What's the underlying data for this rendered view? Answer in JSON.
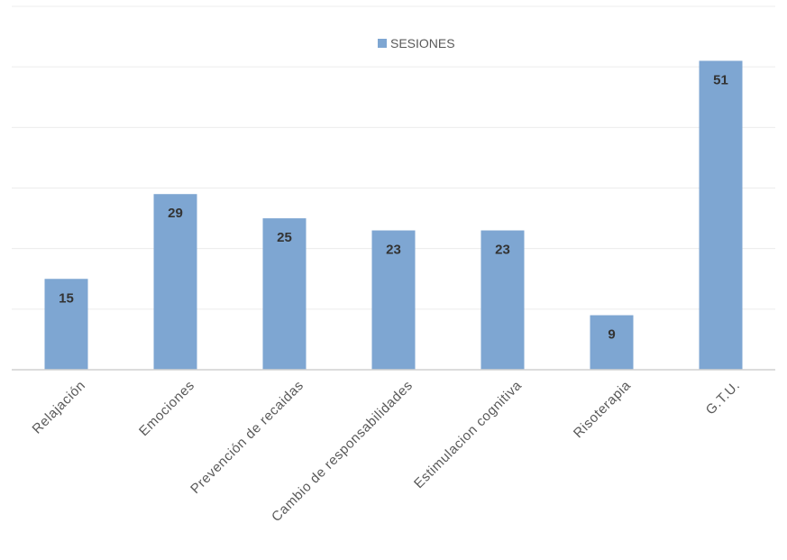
{
  "chart_data": {
    "type": "bar",
    "categories": [
      "Relajación",
      "Emociones",
      "Prevención de recaidas",
      "Cambio de responsabilidades",
      "Estimulacion cognitiva",
      "Risoterapia",
      "G.T.U."
    ],
    "series": [
      {
        "name": "SESIONES",
        "values": [
          15,
          29,
          25,
          23,
          23,
          9,
          51
        ],
        "color": "#7ea6d2"
      }
    ],
    "ylim": [
      0,
      60
    ],
    "grid": true,
    "data_labels": true,
    "legend_position": "top"
  }
}
